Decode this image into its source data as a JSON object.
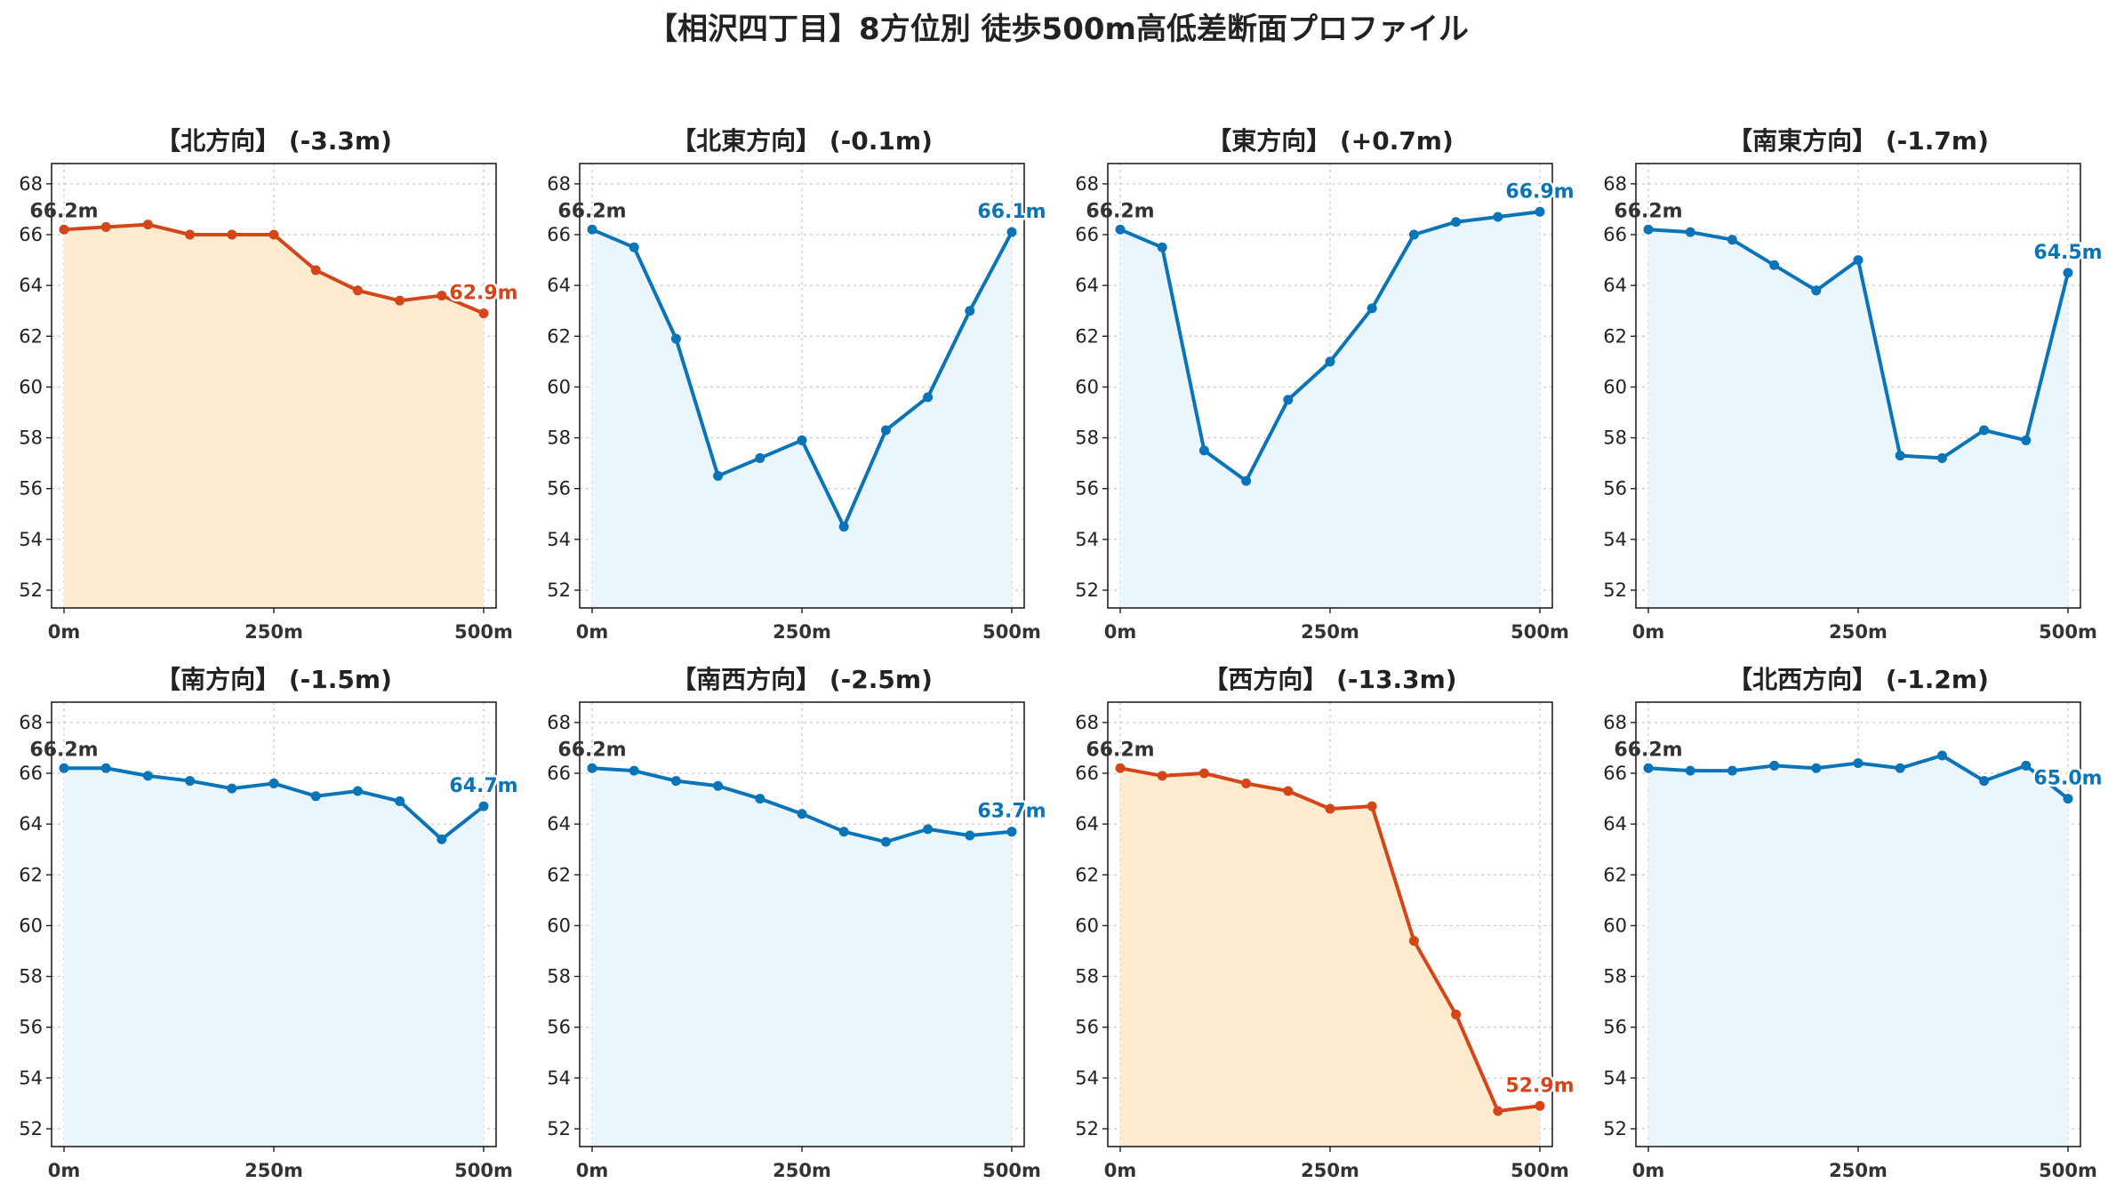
{
  "title": "【相沢四丁目】8方位別 徒歩500m高低差断面プロファイル",
  "colors": {
    "up": "#0a74b8",
    "up_fill": "#eaf6fc",
    "down": "#d4461a",
    "down_fill": "#fdebd0"
  },
  "chart_data": [
    {
      "type": "line",
      "title": "【北方向】 (-3.3m)",
      "x": [
        0,
        50,
        100,
        150,
        200,
        250,
        300,
        350,
        400,
        450,
        500
      ],
      "values": [
        66.2,
        66.3,
        66.4,
        66.0,
        66.0,
        66.0,
        64.6,
        63.8,
        63.4,
        63.6,
        62.9
      ],
      "start_label": "66.2m",
      "end_label": "62.9m",
      "highlight": true,
      "xticks": [
        "0m",
        "250m",
        "500m"
      ],
      "yticks": [
        "52",
        "54",
        "56",
        "58",
        "60",
        "62",
        "64",
        "66",
        "68"
      ],
      "xlim": [
        0,
        500
      ],
      "ylim": [
        51.3,
        68.8
      ],
      "grid": true
    },
    {
      "type": "line",
      "title": "【北東方向】 (-0.1m)",
      "x": [
        0,
        50,
        100,
        150,
        200,
        250,
        300,
        350,
        400,
        450,
        500
      ],
      "values": [
        66.2,
        65.5,
        61.9,
        56.5,
        57.2,
        57.9,
        54.5,
        58.3,
        59.6,
        63.0,
        66.1
      ],
      "start_label": "66.2m",
      "end_label": "66.1m",
      "highlight": false,
      "xticks": [
        "0m",
        "250m",
        "500m"
      ],
      "yticks": [
        "52",
        "54",
        "56",
        "58",
        "60",
        "62",
        "64",
        "66",
        "68"
      ],
      "xlim": [
        0,
        500
      ],
      "ylim": [
        51.3,
        68.8
      ],
      "grid": true
    },
    {
      "type": "line",
      "title": "【東方向】 (+0.7m)",
      "x": [
        0,
        50,
        100,
        150,
        200,
        250,
        300,
        350,
        400,
        450,
        500
      ],
      "values": [
        66.2,
        65.5,
        57.5,
        56.3,
        59.5,
        61.0,
        63.1,
        66.0,
        66.5,
        66.7,
        66.9
      ],
      "start_label": "66.2m",
      "end_label": "66.9m",
      "highlight": false,
      "xticks": [
        "0m",
        "250m",
        "500m"
      ],
      "yticks": [
        "52",
        "54",
        "56",
        "58",
        "60",
        "62",
        "64",
        "66",
        "68"
      ],
      "xlim": [
        0,
        500
      ],
      "ylim": [
        51.3,
        68.8
      ],
      "grid": true
    },
    {
      "type": "line",
      "title": "【南東方向】 (-1.7m)",
      "x": [
        0,
        50,
        100,
        150,
        200,
        250,
        300,
        350,
        400,
        450,
        500
      ],
      "values": [
        66.2,
        66.1,
        65.8,
        64.8,
        63.8,
        65.0,
        57.3,
        57.2,
        58.3,
        57.9,
        64.5
      ],
      "start_label": "66.2m",
      "end_label": "64.5m",
      "highlight": false,
      "xticks": [
        "0m",
        "250m",
        "500m"
      ],
      "yticks": [
        "52",
        "54",
        "56",
        "58",
        "60",
        "62",
        "64",
        "66",
        "68"
      ],
      "xlim": [
        0,
        500
      ],
      "ylim": [
        51.3,
        68.8
      ],
      "grid": true
    },
    {
      "type": "line",
      "title": "【南方向】 (-1.5m)",
      "x": [
        0,
        50,
        100,
        150,
        200,
        250,
        300,
        350,
        400,
        450,
        500
      ],
      "values": [
        66.2,
        66.2,
        65.9,
        65.7,
        65.4,
        65.6,
        65.1,
        65.3,
        64.9,
        63.4,
        64.7
      ],
      "start_label": "66.2m",
      "end_label": "64.7m",
      "highlight": false,
      "xticks": [
        "0m",
        "250m",
        "500m"
      ],
      "yticks": [
        "52",
        "54",
        "56",
        "58",
        "60",
        "62",
        "64",
        "66",
        "68"
      ],
      "xlim": [
        0,
        500
      ],
      "ylim": [
        51.3,
        68.8
      ],
      "grid": true
    },
    {
      "type": "line",
      "title": "【南西方向】 (-2.5m)",
      "x": [
        0,
        50,
        100,
        150,
        200,
        250,
        300,
        350,
        400,
        450,
        500
      ],
      "values": [
        66.2,
        66.1,
        65.7,
        65.5,
        65.0,
        64.4,
        63.7,
        63.3,
        63.8,
        63.55,
        63.7
      ],
      "start_label": "66.2m",
      "end_label": "63.7m",
      "highlight": false,
      "xticks": [
        "0m",
        "250m",
        "500m"
      ],
      "yticks": [
        "52",
        "54",
        "56",
        "58",
        "60",
        "62",
        "64",
        "66",
        "68"
      ],
      "xlim": [
        0,
        500
      ],
      "ylim": [
        51.3,
        68.8
      ],
      "grid": true
    },
    {
      "type": "line",
      "title": "【西方向】 (-13.3m)",
      "x": [
        0,
        50,
        100,
        150,
        200,
        250,
        300,
        350,
        400,
        450,
        500
      ],
      "values": [
        66.2,
        65.9,
        66.0,
        65.6,
        65.3,
        64.6,
        64.7,
        59.4,
        56.5,
        52.7,
        52.9
      ],
      "start_label": "66.2m",
      "end_label": "52.9m",
      "highlight": true,
      "xticks": [
        "0m",
        "250m",
        "500m"
      ],
      "yticks": [
        "52",
        "54",
        "56",
        "58",
        "60",
        "62",
        "64",
        "66",
        "68"
      ],
      "xlim": [
        0,
        500
      ],
      "ylim": [
        51.3,
        68.8
      ],
      "grid": true
    },
    {
      "type": "line",
      "title": "【北西方向】 (-1.2m)",
      "x": [
        0,
        50,
        100,
        150,
        200,
        250,
        300,
        350,
        400,
        450,
        500
      ],
      "values": [
        66.2,
        66.1,
        66.1,
        66.3,
        66.2,
        66.4,
        66.2,
        66.7,
        65.7,
        66.3,
        65.0
      ],
      "start_label": "66.2m",
      "end_label": "65.0m",
      "highlight": false,
      "xticks": [
        "0m",
        "250m",
        "500m"
      ],
      "yticks": [
        "52",
        "54",
        "56",
        "58",
        "60",
        "62",
        "64",
        "66",
        "68"
      ],
      "xlim": [
        0,
        500
      ],
      "ylim": [
        51.3,
        68.8
      ],
      "grid": true
    }
  ]
}
